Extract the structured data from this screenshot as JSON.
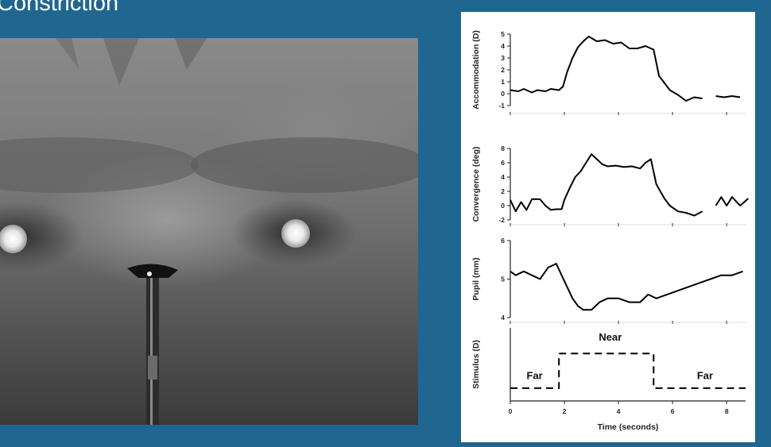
{
  "slide": {
    "title": "Constriction"
  },
  "photo": {
    "description": ""
  },
  "chart_data": {
    "type": "line",
    "xlabel": "Time (seconds)",
    "xlim": [
      0,
      8.7
    ],
    "xticks": [
      0,
      2,
      4,
      6,
      8
    ],
    "panels": [
      {
        "id": "accommodation",
        "ylabel": "Accommodation (D)",
        "ylim": [
          -1,
          5
        ],
        "yticks": [
          -1,
          0,
          1,
          2,
          3,
          4,
          5
        ],
        "series": [
          {
            "x": [
              0,
              0.3,
              0.5,
              0.8,
              1.0,
              1.3,
              1.5,
              1.8,
              1.95,
              2.1,
              2.3,
              2.5,
              2.7,
              2.9,
              3.2,
              3.5,
              3.8,
              4.1,
              4.4,
              4.7,
              5.0,
              5.3,
              5.5,
              5.9,
              6.2,
              6.5,
              6.8,
              7.1
            ],
            "y": [
              0.3,
              0.2,
              0.4,
              0.1,
              0.3,
              0.2,
              0.4,
              0.3,
              0.6,
              1.8,
              3.0,
              3.9,
              4.4,
              4.8,
              4.4,
              4.5,
              4.2,
              4.3,
              3.8,
              3.8,
              4.0,
              3.7,
              1.5,
              0.3,
              -0.1,
              -0.6,
              -0.3,
              -0.4
            ]
          },
          {
            "x": [
              7.6,
              7.9,
              8.2,
              8.5
            ],
            "y": [
              -0.2,
              -0.3,
              -0.2,
              -0.3
            ]
          }
        ]
      },
      {
        "id": "convergence",
        "ylabel": "Convergence (deg)",
        "ylim": [
          -2,
          8
        ],
        "yticks": [
          -2,
          0,
          2,
          4,
          6,
          8
        ],
        "series": [
          {
            "x": [
              0,
              0.2,
              0.4,
              0.6,
              0.8,
              1.1,
              1.3,
              1.5,
              1.7,
              1.9,
              2.0,
              2.2,
              2.4,
              2.6,
              2.8,
              3.0,
              3.2,
              3.4,
              3.6,
              3.9,
              4.2,
              4.5,
              4.8,
              5.0,
              5.2,
              5.4,
              5.7,
              5.9,
              6.2,
              6.5,
              6.8,
              7.1
            ],
            "y": [
              0.8,
              -0.8,
              0.5,
              -0.6,
              0.9,
              0.9,
              0.0,
              -0.6,
              -0.5,
              -0.5,
              0.8,
              2.5,
              4.0,
              4.8,
              6.0,
              7.2,
              6.5,
              5.8,
              5.5,
              5.6,
              5.4,
              5.5,
              5.2,
              6.0,
              6.5,
              3.0,
              1.0,
              0.0,
              -0.8,
              -1.0,
              -1.4,
              -0.8
            ]
          },
          {
            "x": [
              7.6,
              7.8,
              8.0,
              8.2,
              8.5,
              8.8
            ],
            "y": [
              0.0,
              1.2,
              0.0,
              1.2,
              0.0,
              1.0
            ]
          }
        ]
      },
      {
        "id": "pupil",
        "ylabel": "Pupil (mm)",
        "ylim": [
          4,
          6
        ],
        "yticks": [
          4,
          5,
          6
        ],
        "series": [
          {
            "x": [
              0,
              0.2,
              0.5,
              0.8,
              1.1,
              1.4,
              1.7,
              1.9,
              2.1,
              2.3,
              2.5,
              2.7,
              3.0,
              3.3,
              3.6,
              4.0,
              4.4,
              4.8,
              5.1,
              5.4,
              5.8,
              6.2,
              6.6,
              7.0,
              7.4,
              7.8,
              8.2,
              8.6
            ],
            "y": [
              5.2,
              5.1,
              5.2,
              5.1,
              5.0,
              5.3,
              5.4,
              5.1,
              4.8,
              4.5,
              4.3,
              4.2,
              4.2,
              4.4,
              4.5,
              4.5,
              4.4,
              4.4,
              4.6,
              4.5,
              4.6,
              4.7,
              4.8,
              4.9,
              5.0,
              5.1,
              5.1,
              5.2
            ]
          }
        ]
      },
      {
        "id": "stimulus",
        "ylabel": "Stimulus (D)",
        "ylim": [
          0,
          4
        ],
        "yticks": [],
        "dashed": true,
        "series": [
          {
            "x": [
              0,
              1.8,
              1.8,
              5.3,
              5.3,
              8.7
            ],
            "y": [
              0.7,
              0.7,
              2.6,
              2.6,
              0.7,
              0.7
            ]
          }
        ],
        "annotations": [
          {
            "text": "Far",
            "x": 0.9,
            "y": 1.2
          },
          {
            "text": "Near",
            "x": 3.7,
            "y": 3.3
          },
          {
            "text": "Far",
            "x": 7.2,
            "y": 1.2
          }
        ]
      }
    ]
  }
}
